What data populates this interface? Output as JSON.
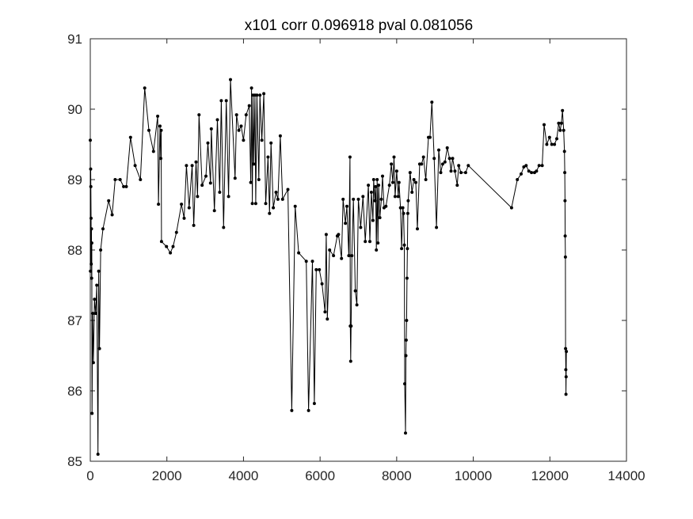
{
  "chart_data": {
    "type": "line",
    "title": "x101 corr 0.096918 pval 0.081056",
    "xlabel": "",
    "ylabel": "",
    "xlim": [
      0,
      14000
    ],
    "ylim": [
      85,
      91
    ],
    "x_ticks": [
      "0",
      "2000",
      "4000",
      "6000",
      "8000",
      "10000",
      "12000",
      "14000"
    ],
    "y_ticks": [
      "85",
      "86",
      "87",
      "88",
      "89",
      "90",
      "91"
    ],
    "grid": false,
    "line_color": "#000000",
    "marker": "dot",
    "series": [
      {
        "points": [
          [
            0,
            89.56
          ],
          [
            5,
            87.7
          ],
          [
            10,
            89.15
          ],
          [
            15,
            88.9
          ],
          [
            20,
            88.45
          ],
          [
            25,
            87.8
          ],
          [
            30,
            88.3
          ],
          [
            35,
            87.6
          ],
          [
            40,
            88.1
          ],
          [
            45,
            85.68
          ],
          [
            60,
            87.1
          ],
          [
            80,
            86.4
          ],
          [
            110,
            87.3
          ],
          [
            140,
            87.1
          ],
          [
            170,
            87.5
          ],
          [
            200,
            85.1
          ],
          [
            220,
            87.7
          ],
          [
            240,
            86.6
          ],
          [
            270,
            88.0
          ],
          [
            330,
            88.3
          ],
          [
            480,
            88.7
          ],
          [
            570,
            88.5
          ],
          [
            650,
            89.0
          ],
          [
            780,
            89.0
          ],
          [
            870,
            88.9
          ],
          [
            940,
            88.9
          ],
          [
            1050,
            89.6
          ],
          [
            1170,
            89.2
          ],
          [
            1310,
            89.0
          ],
          [
            1420,
            90.3
          ],
          [
            1530,
            89.7
          ],
          [
            1650,
            89.4
          ],
          [
            1760,
            89.9
          ],
          [
            1780,
            88.65
          ],
          [
            1820,
            89.76
          ],
          [
            1840,
            89.3
          ],
          [
            1850,
            89.7
          ],
          [
            1860,
            88.12
          ],
          [
            1990,
            88.05
          ],
          [
            2090,
            87.96
          ],
          [
            2160,
            88.05
          ],
          [
            2250,
            88.25
          ],
          [
            2380,
            88.65
          ],
          [
            2450,
            88.45
          ],
          [
            2510,
            89.2
          ],
          [
            2580,
            88.6
          ],
          [
            2660,
            89.2
          ],
          [
            2700,
            88.35
          ],
          [
            2760,
            89.25
          ],
          [
            2800,
            88.76
          ],
          [
            2840,
            89.92
          ],
          [
            2920,
            88.92
          ],
          [
            3020,
            89.05
          ],
          [
            3070,
            89.52
          ],
          [
            3140,
            88.95
          ],
          [
            3160,
            89.72
          ],
          [
            3240,
            88.56
          ],
          [
            3320,
            89.85
          ],
          [
            3380,
            88.82
          ],
          [
            3420,
            90.12
          ],
          [
            3480,
            88.32
          ],
          [
            3550,
            90.12
          ],
          [
            3610,
            88.76
          ],
          [
            3660,
            90.42
          ],
          [
            3780,
            89.02
          ],
          [
            3820,
            89.92
          ],
          [
            3880,
            89.7
          ],
          [
            3940,
            89.76
          ],
          [
            4000,
            89.56
          ],
          [
            4070,
            89.92
          ],
          [
            4150,
            90.05
          ],
          [
            4190,
            88.96
          ],
          [
            4210,
            90.3
          ],
          [
            4230,
            88.66
          ],
          [
            4250,
            90.2
          ],
          [
            4270,
            89.22
          ],
          [
            4300,
            90.2
          ],
          [
            4320,
            88.66
          ],
          [
            4350,
            90.2
          ],
          [
            4400,
            89.0
          ],
          [
            4430,
            90.2
          ],
          [
            4480,
            89.56
          ],
          [
            4530,
            90.22
          ],
          [
            4580,
            88.66
          ],
          [
            4640,
            89.32
          ],
          [
            4680,
            88.52
          ],
          [
            4720,
            89.52
          ],
          [
            4780,
            88.6
          ],
          [
            4850,
            88.82
          ],
          [
            4900,
            88.72
          ],
          [
            4960,
            89.62
          ],
          [
            5020,
            88.72
          ],
          [
            5160,
            88.86
          ],
          [
            5260,
            85.72
          ],
          [
            5350,
            88.62
          ],
          [
            5440,
            87.96
          ],
          [
            5640,
            87.84
          ],
          [
            5700,
            85.72
          ],
          [
            5800,
            87.84
          ],
          [
            5850,
            85.82
          ],
          [
            5900,
            87.72
          ],
          [
            5980,
            87.72
          ],
          [
            6050,
            87.52
          ],
          [
            6130,
            87.12
          ],
          [
            6160,
            88.22
          ],
          [
            6190,
            87.02
          ],
          [
            6250,
            88.0
          ],
          [
            6350,
            87.92
          ],
          [
            6450,
            88.2
          ],
          [
            6480,
            88.22
          ],
          [
            6560,
            87.88
          ],
          [
            6600,
            88.72
          ],
          [
            6660,
            88.38
          ],
          [
            6700,
            88.62
          ],
          [
            6750,
            87.92
          ],
          [
            6780,
            89.32
          ],
          [
            6790,
            86.92
          ],
          [
            6800,
            86.42
          ],
          [
            6810,
            86.92
          ],
          [
            6830,
            87.92
          ],
          [
            6870,
            88.72
          ],
          [
            6920,
            87.42
          ],
          [
            6960,
            87.22
          ],
          [
            7000,
            88.72
          ],
          [
            7060,
            88.32
          ],
          [
            7120,
            88.76
          ],
          [
            7180,
            88.12
          ],
          [
            7260,
            88.92
          ],
          [
            7300,
            88.12
          ],
          [
            7340,
            88.82
          ],
          [
            7380,
            88.42
          ],
          [
            7400,
            89.0
          ],
          [
            7430,
            88.7
          ],
          [
            7450,
            88.9
          ],
          [
            7470,
            88.0
          ],
          [
            7490,
            89.0
          ],
          [
            7510,
            88.1
          ],
          [
            7530,
            88.92
          ],
          [
            7560,
            88.46
          ],
          [
            7600,
            88.72
          ],
          [
            7630,
            89.05
          ],
          [
            7670,
            88.6
          ],
          [
            7720,
            88.62
          ],
          [
            7810,
            88.92
          ],
          [
            7860,
            89.22
          ],
          [
            7900,
            88.96
          ],
          [
            7930,
            89.32
          ],
          [
            7960,
            88.76
          ],
          [
            8000,
            89.12
          ],
          [
            8040,
            88.76
          ],
          [
            8060,
            88.96
          ],
          [
            8100,
            88.6
          ],
          [
            8130,
            88.02
          ],
          [
            8160,
            88.6
          ],
          [
            8180,
            88.52
          ],
          [
            8200,
            88.07
          ],
          [
            8210,
            86.1
          ],
          [
            8230,
            85.4
          ],
          [
            8240,
            86.5
          ],
          [
            8250,
            86.72
          ],
          [
            8260,
            87.0
          ],
          [
            8270,
            87.6
          ],
          [
            8280,
            88.02
          ],
          [
            8290,
            88.52
          ],
          [
            8300,
            88.7
          ],
          [
            8350,
            89.1
          ],
          [
            8400,
            88.82
          ],
          [
            8450,
            89.0
          ],
          [
            8500,
            88.96
          ],
          [
            8540,
            88.3
          ],
          [
            8600,
            89.22
          ],
          [
            8650,
            89.22
          ],
          [
            8700,
            89.32
          ],
          [
            8760,
            89.0
          ],
          [
            8830,
            89.6
          ],
          [
            8870,
            89.6
          ],
          [
            8920,
            90.1
          ],
          [
            8980,
            89.3
          ],
          [
            9040,
            88.32
          ],
          [
            9100,
            89.42
          ],
          [
            9150,
            89.1
          ],
          [
            9200,
            89.22
          ],
          [
            9260,
            89.25
          ],
          [
            9320,
            89.45
          ],
          [
            9380,
            89.3
          ],
          [
            9420,
            89.12
          ],
          [
            9460,
            89.3
          ],
          [
            9520,
            89.12
          ],
          [
            9580,
            88.92
          ],
          [
            9620,
            89.2
          ],
          [
            9680,
            89.1
          ],
          [
            9800,
            89.1
          ],
          [
            9870,
            89.2
          ],
          [
            11000,
            88.6
          ],
          [
            11150,
            89.0
          ],
          [
            11250,
            89.08
          ],
          [
            11320,
            89.18
          ],
          [
            11380,
            89.2
          ],
          [
            11450,
            89.12
          ],
          [
            11520,
            89.1
          ],
          [
            11600,
            89.1
          ],
          [
            11650,
            89.12
          ],
          [
            11720,
            89.2
          ],
          [
            11800,
            89.2
          ],
          [
            11850,
            89.78
          ],
          [
            11920,
            89.5
          ],
          [
            11990,
            89.6
          ],
          [
            12050,
            89.5
          ],
          [
            12120,
            89.5
          ],
          [
            12180,
            89.58
          ],
          [
            12230,
            89.8
          ],
          [
            12270,
            89.7
          ],
          [
            12300,
            89.8
          ],
          [
            12330,
            89.98
          ],
          [
            12360,
            89.7
          ],
          [
            12380,
            89.4
          ],
          [
            12390,
            89.1
          ],
          [
            12395,
            88.7
          ],
          [
            12400,
            88.2
          ],
          [
            12405,
            87.9
          ],
          [
            12410,
            86.6
          ],
          [
            12415,
            86.3
          ],
          [
            12420,
            85.95
          ],
          [
            12425,
            86.2
          ],
          [
            12430,
            86.56
          ]
        ]
      }
    ]
  }
}
